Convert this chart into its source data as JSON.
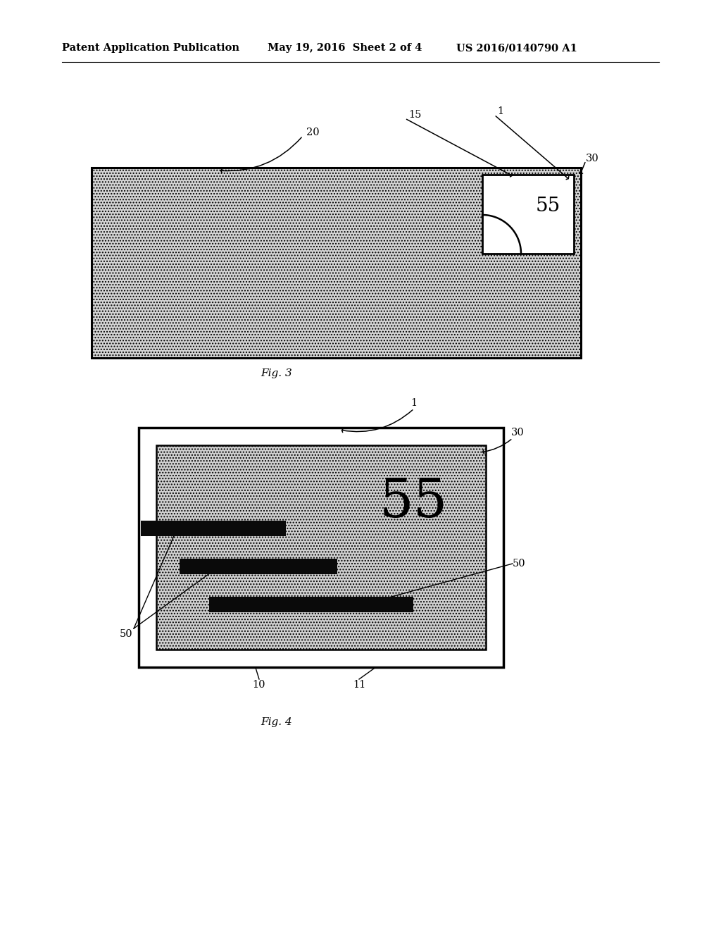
{
  "bg_color": "#ffffff",
  "header_left": "Patent Application Publication",
  "header_mid": "May 19, 2016  Sheet 2 of 4",
  "header_right": "US 2016/0140790 A1",
  "fig3_caption": "Fig. 3",
  "fig4_caption": "Fig. 4",
  "fig3_label_20": "20",
  "fig3_label_15": "15",
  "fig3_label_1": "1",
  "fig3_label_30": "30",
  "fig4_label_1": "1",
  "fig4_label_30": "30",
  "fig4_label_50a": "50",
  "fig4_label_50b": "50",
  "fig4_label_10": "10",
  "fig4_label_11": "11",
  "hatch_pattern": "....",
  "envelope_hatch_color": "#aaaaaa",
  "screen_hatch_color": "#bbbbbb",
  "border_color": "#000000",
  "bar_color": "#111111",
  "stamp_bg": "#ffffff"
}
